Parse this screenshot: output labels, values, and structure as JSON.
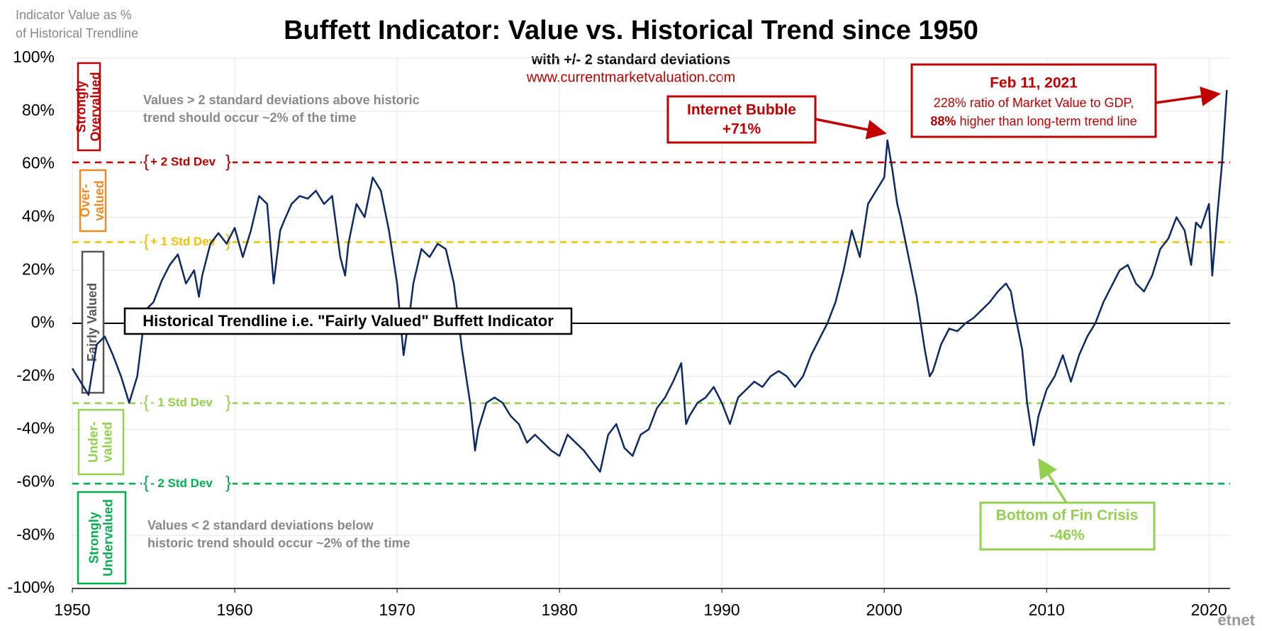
{
  "chart_data": {
    "type": "line",
    "title": "Buffett Indicator: Value vs. Historical Trend since 1950",
    "subtitle": "with +/- 2 standard deviations",
    "source": "www.currentmarketvaluation.com",
    "y_axis_label": [
      "Indicator Value as %",
      "of Historical Trendline"
    ],
    "color": "#0d2a66",
    "grid": true,
    "xlim": [
      1950,
      2021.3
    ],
    "xticks": [
      1950,
      1960,
      1970,
      1980,
      1990,
      2000,
      2010,
      2020
    ],
    "ylim": [
      -100,
      100
    ],
    "yticks": [
      {
        "value": -100,
        "label": "-100%"
      },
      {
        "value": -80,
        "label": "-80%"
      },
      {
        "value": -60,
        "label": "-60%"
      },
      {
        "value": -40,
        "label": "-40%"
      },
      {
        "value": -20,
        "label": "-20%"
      },
      {
        "value": 0,
        "label": "0%"
      },
      {
        "value": 20,
        "label": "20%"
      },
      {
        "value": 40,
        "label": "40%"
      },
      {
        "value": 60,
        "label": "60%"
      },
      {
        "value": 80,
        "label": "80%"
      },
      {
        "value": 100,
        "label": "100%"
      }
    ],
    "x": [
      1950,
      1950.5,
      1951,
      1951.5,
      1952,
      1952.5,
      1953,
      1953.5,
      1954,
      1954.5,
      1955,
      1955.5,
      1956,
      1956.5,
      1957,
      1957.5,
      1957.8,
      1958,
      1958.5,
      1959,
      1959.5,
      1960,
      1960.5,
      1961,
      1961.5,
      1962,
      1962.4,
      1962.8,
      1963,
      1963.5,
      1964,
      1964.5,
      1965,
      1965.5,
      1966,
      1966.5,
      1966.8,
      1967,
      1967.5,
      1968,
      1968.5,
      1969,
      1969.5,
      1970,
      1970.4,
      1970.8,
      1971,
      1971.5,
      1972,
      1972.5,
      1973,
      1973.5,
      1974,
      1974.5,
      1974.8,
      1975,
      1975.5,
      1976,
      1976.5,
      1977,
      1977.5,
      1978,
      1978.5,
      1979,
      1979.5,
      1980,
      1980.5,
      1981,
      1981.5,
      1982,
      1982.5,
      1983,
      1983.5,
      1984,
      1984.5,
      1985,
      1985.5,
      1986,
      1986.5,
      1987,
      1987.5,
      1987.8,
      1988,
      1988.5,
      1989,
      1989.5,
      1990,
      1990.5,
      1991,
      1991.5,
      1992,
      1992.5,
      1993,
      1993.5,
      1994,
      1994.5,
      1995,
      1995.5,
      1996,
      1996.5,
      1997,
      1997.5,
      1998,
      1998.5,
      1999,
      1999.5,
      2000,
      2000.2,
      2000.5,
      2000.8,
      2001,
      2001.5,
      2002,
      2002.5,
      2002.8,
      2003,
      2003.5,
      2004,
      2004.5,
      2005,
      2005.5,
      2006,
      2006.5,
      2007,
      2007.5,
      2007.8,
      2008,
      2008.5,
      2008.8,
      2009.2,
      2009.5,
      2010,
      2010.5,
      2011,
      2011.5,
      2012,
      2012.5,
      2013,
      2013.5,
      2014,
      2014.5,
      2015,
      2015.5,
      2016,
      2016.5,
      2017,
      2017.5,
      2018,
      2018.5,
      2018.9,
      2019.2,
      2019.5,
      2020,
      2020.2,
      2020.5,
      2020.8,
      2021.1
    ],
    "values": [
      -17,
      -22,
      -27,
      -8,
      -5,
      -12,
      -20,
      -30,
      -20,
      5,
      8,
      16,
      22,
      26,
      15,
      20,
      10,
      18,
      30,
      34,
      30,
      36,
      25,
      35,
      48,
      45,
      15,
      35,
      38,
      45,
      48,
      47,
      50,
      45,
      48,
      25,
      18,
      30,
      45,
      40,
      55,
      50,
      35,
      15,
      -12,
      5,
      15,
      28,
      25,
      30,
      28,
      15,
      -10,
      -30,
      -48,
      -40,
      -30,
      -28,
      -30,
      -35,
      -38,
      -45,
      -42,
      -45,
      -48,
      -50,
      -42,
      -45,
      -48,
      -52,
      -56,
      -42,
      -38,
      -47,
      -50,
      -42,
      -40,
      -32,
      -28,
      -22,
      -15,
      -38,
      -35,
      -30,
      -28,
      -24,
      -30,
      -38,
      -28,
      -25,
      -22,
      -24,
      -20,
      -18,
      -20,
      -24,
      -20,
      -12,
      -6,
      0,
      8,
      20,
      35,
      25,
      45,
      50,
      55,
      69,
      58,
      45,
      40,
      25,
      10,
      -10,
      -20,
      -18,
      -8,
      -2,
      -3,
      0,
      2,
      5,
      8,
      12,
      15,
      12,
      5,
      -10,
      -30,
      -46,
      -35,
      -25,
      -20,
      -12,
      -22,
      -12,
      -5,
      0,
      8,
      14,
      20,
      22,
      15,
      12,
      18,
      28,
      32,
      40,
      35,
      22,
      38,
      36,
      45,
      18,
      40,
      60,
      88
    ],
    "reference_lines": [
      {
        "label": "+ 2 Std Dev",
        "value": 60.7,
        "color": "#c00000"
      },
      {
        "label": "+ 1 Std Dev",
        "value": 30.6,
        "color": "#f5c000"
      },
      {
        "label": "- 1 Std Dev",
        "value": -30.1,
        "color": "#92d050"
      },
      {
        "label": "- 2 Std Dev",
        "value": -60.5,
        "color": "#00b050"
      }
    ],
    "zones": [
      {
        "lines": [
          "Strongly",
          "Overvalued"
        ],
        "color": "#c00000"
      },
      {
        "lines": [
          "Over-",
          "valued"
        ],
        "color": "#f08a24"
      },
      {
        "lines": [
          "Fairly Valued"
        ],
        "color": "#555555"
      },
      {
        "lines": [
          "Under-",
          "valued"
        ],
        "color": "#92d050"
      },
      {
        "lines": [
          "Strongly",
          "Undervalued"
        ],
        "color": "#00b050"
      }
    ],
    "notes": {
      "above": [
        "Values > 2 standard deviations above historic",
        "trend should occur ~2% of the time"
      ],
      "below": [
        "Values < 2 standard deviations below",
        "historic trend should occur ~2% of the time"
      ],
      "trendline": "Historical Trendline i.e. \"Fairly Valued\" Buffett Indicator"
    },
    "annotations": {
      "bubble": [
        "Internet Bubble",
        "+71%"
      ],
      "latest": {
        "head": "Feb 11, 2021",
        "line": "228% ratio of Market Value to GDP,",
        "bold": "88%",
        "rest": "higher than long-term trend line"
      },
      "crisis": [
        "Bottom of Fin Crisis",
        "-46%"
      ]
    },
    "watermark": "etnet"
  }
}
